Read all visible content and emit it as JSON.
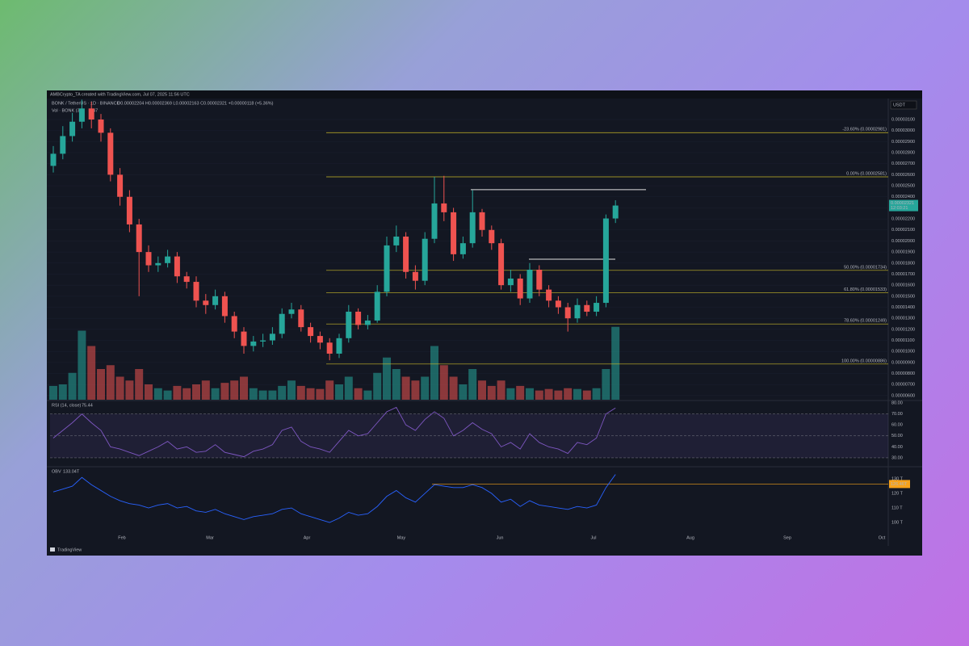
{
  "header": {
    "credit": "AMBCrypto_TA created with TradingView.com, Jul 07, 2025 11:56 UTC",
    "symbol": "BONK / TetherUS · 1D · BINANCE",
    "ohlc": "O0.00002204 H0.00002369 L0.00002163 C0.00002321 +0.00000118 (+5.36%)",
    "volume_label": "Vol · BONK (3B)",
    "volume_value": "747",
    "currency": "USDT",
    "countdown": "12:03:21",
    "brand": "TradingView"
  },
  "chart_data": [
    {
      "type": "candlestick",
      "up_color": "#26a69a",
      "down_color": "#ef5350",
      "open": [
        2.68e-05,
        2.79e-05,
        2.95e-05,
        3.08e-05,
        3.2e-05,
        3.1e-05,
        2.98e-05,
        2.6e-05,
        2.4e-05,
        2.15e-05,
        1.9e-05,
        1.78e-05,
        1.8e-05,
        1.86e-05,
        1.68e-05,
        1.63e-05,
        1.46e-05,
        1.42e-05,
        1.5e-05,
        1.32e-05,
        1.18e-05,
        1.05e-05,
        1.09e-05,
        1.1e-05,
        1.16e-05,
        1.34e-05,
        1.38e-05,
        1.22e-05,
        1.14e-05,
        1.08e-05,
        9.8e-06,
        1.12e-05,
        1.36e-05,
        1.24e-05,
        1.28e-05,
        1.54e-05,
        1.96e-05,
        2.04e-05,
        1.72e-05,
        1.64e-05,
        2.02e-05,
        2.34e-05,
        2.26e-05,
        1.88e-05,
        1.98e-05,
        2.26e-05,
        2.1e-05,
        1.98e-05,
        1.6e-05,
        1.66e-05,
        1.48e-05,
        1.74e-05,
        1.56e-05,
        1.46e-05,
        1.4e-05,
        1.3e-05,
        1.42e-05,
        1.36e-05,
        1.44e-05,
        2.204e-05
      ],
      "high": [
        2.86e-05,
        3.04e-05,
        3.16e-05,
        3.28e-05,
        3.26e-05,
        3.15e-05,
        3.02e-05,
        2.66e-05,
        2.46e-05,
        2.2e-05,
        1.96e-05,
        1.86e-05,
        1.92e-05,
        1.9e-05,
        1.72e-05,
        1.68e-05,
        1.52e-05,
        1.56e-05,
        1.54e-05,
        1.36e-05,
        1.22e-05,
        1.14e-05,
        1.16e-05,
        1.22e-05,
        1.39e-05,
        1.44e-05,
        1.42e-05,
        1.26e-05,
        1.18e-05,
        1.12e-05,
        1.16e-05,
        1.42e-05,
        1.39e-05,
        1.33e-05,
        1.6e-05,
        2.04e-05,
        2.14e-05,
        2.08e-05,
        1.78e-05,
        2.08e-05,
        2.58e-05,
        2.59e-05,
        2.3e-05,
        2.04e-05,
        2.46e-05,
        2.29e-05,
        2.14e-05,
        2.02e-05,
        1.74e-05,
        1.7e-05,
        1.8e-05,
        1.78e-05,
        1.6e-05,
        1.5e-05,
        1.44e-05,
        1.48e-05,
        1.46e-05,
        1.5e-05,
        2.24e-05,
        2.369e-05
      ],
      "low": [
        2.62e-05,
        2.74e-05,
        2.9e-05,
        3.02e-05,
        3.02e-05,
        2.9e-05,
        2.54e-05,
        2.32e-05,
        2.08e-05,
        1.5e-05,
        1.72e-05,
        1.72e-05,
        1.76e-05,
        1.62e-05,
        1.57e-05,
        1.4e-05,
        1.34e-05,
        1.38e-05,
        1.26e-05,
        1.12e-05,
        9.8e-06,
        1e-05,
        1.04e-05,
        1.06e-05,
        1.12e-05,
        1.3e-05,
        1.18e-05,
        1.08e-05,
        1.02e-05,
        9.2e-06,
        9.4e-06,
        1.08e-05,
        1.2e-05,
        1.2e-05,
        1.26e-05,
        1.5e-05,
        1.9e-05,
        1.66e-05,
        1.56e-05,
        1.6e-05,
        1.98e-05,
        2.18e-05,
        1.82e-05,
        1.84e-05,
        1.94e-05,
        2.04e-05,
        1.92e-05,
        1.56e-05,
        1.54e-05,
        1.42e-05,
        1.44e-05,
        1.5e-05,
        1.4e-05,
        1.34e-05,
        1.18e-05,
        1.26e-05,
        1.32e-05,
        1.32e-05,
        1.4e-05,
        2.163e-05
      ],
      "close": [
        2.79e-05,
        2.95e-05,
        3.08e-05,
        3.2e-05,
        3.1e-05,
        2.98e-05,
        2.6e-05,
        2.4e-05,
        2.15e-05,
        1.9e-05,
        1.78e-05,
        1.8e-05,
        1.86e-05,
        1.68e-05,
        1.63e-05,
        1.46e-05,
        1.42e-05,
        1.5e-05,
        1.32e-05,
        1.18e-05,
        1.05e-05,
        1.09e-05,
        1.1e-05,
        1.16e-05,
        1.34e-05,
        1.38e-05,
        1.22e-05,
        1.14e-05,
        1.08e-05,
        9.8e-06,
        1.12e-05,
        1.36e-05,
        1.24e-05,
        1.28e-05,
        1.54e-05,
        1.96e-05,
        2.04e-05,
        1.72e-05,
        1.64e-05,
        2.02e-05,
        2.34e-05,
        2.26e-05,
        1.88e-05,
        1.98e-05,
        2.26e-05,
        2.1e-05,
        1.98e-05,
        1.6e-05,
        1.66e-05,
        1.48e-05,
        1.74e-05,
        1.56e-05,
        1.46e-05,
        1.4e-05,
        1.3e-05,
        1.42e-05,
        1.36e-05,
        1.44e-05,
        2.204e-05,
        2.321e-05
      ],
      "volume": [
        18,
        20,
        35,
        90,
        70,
        40,
        45,
        30,
        25,
        40,
        20,
        15,
        12,
        18,
        15,
        20,
        25,
        15,
        22,
        25,
        30,
        15,
        12,
        12,
        18,
        25,
        18,
        15,
        14,
        25,
        20,
        30,
        15,
        12,
        35,
        55,
        40,
        30,
        25,
        30,
        70,
        45,
        30,
        20,
        40,
        25,
        18,
        25,
        15,
        18,
        15,
        12,
        14,
        12,
        15,
        14,
        12,
        15,
        40,
        95
      ],
      "volume_lim": [
        0,
        100
      ],
      "ylim": [
        5.63e-06,
        3.29e-05
      ],
      "yticks": [
        {
          "value": 3.1e-05,
          "label": "0.00003100"
        },
        {
          "value": 3e-05,
          "label": "0.00003000"
        },
        {
          "value": 2.9e-05,
          "label": "0.00002900"
        },
        {
          "value": 2.8e-05,
          "label": "0.00002800"
        },
        {
          "value": 2.7e-05,
          "label": "0.00002700"
        },
        {
          "value": 2.6e-05,
          "label": "0.00002600"
        },
        {
          "value": 2.5e-05,
          "label": "0.00002500"
        },
        {
          "value": 2.4e-05,
          "label": "0.00002400"
        },
        {
          "value": 2.3e-05,
          "label": "0.00002300"
        },
        {
          "value": 2.2e-05,
          "label": "0.00002200"
        },
        {
          "value": 2.1e-05,
          "label": "0.00002100"
        },
        {
          "value": 2e-05,
          "label": "0.00002000"
        },
        {
          "value": 1.9e-05,
          "label": "0.00001900"
        },
        {
          "value": 1.8e-05,
          "label": "0.00001800"
        },
        {
          "value": 1.7e-05,
          "label": "0.00001700"
        },
        {
          "value": 1.6e-05,
          "label": "0.00001600"
        },
        {
          "value": 1.5e-05,
          "label": "0.00001500"
        },
        {
          "value": 1.4e-05,
          "label": "0.00001400"
        },
        {
          "value": 1.3e-05,
          "label": "0.00001300"
        },
        {
          "value": 1.2e-05,
          "label": "0.00001200"
        },
        {
          "value": 1.1e-05,
          "label": "0.00001100"
        },
        {
          "value": 1e-05,
          "label": "0.00001000"
        },
        {
          "value": 9e-06,
          "label": "0.00000900"
        },
        {
          "value": 8e-06,
          "label": "0.00000800"
        },
        {
          "value": 7e-06,
          "label": "0.00000700"
        },
        {
          "value": 6e-06,
          "label": "0.00000600"
        }
      ],
      "fib_color": "#c9b92a",
      "fib_levels": [
        {
          "value": 2.981e-05,
          "label": "-23.60% (0.00002981)"
        },
        {
          "value": 2.581e-05,
          "label": "0.00% (0.00002581)"
        },
        {
          "value": 1.734e-05,
          "label": "50.00% (0.00001734)"
        },
        {
          "value": 1.533e-05,
          "label": "61.80% (0.00001533)"
        },
        {
          "value": 1.249e-05,
          "label": "78.60% (0.00001249)"
        },
        {
          "value": 8.86e-06,
          "label": "100.00% (0.00000886)"
        }
      ],
      "lines": [
        2.465e-05,
        1.835e-05
      ],
      "x_labels": [
        "Feb",
        "Mar",
        "Apr",
        "May",
        "Jun",
        "Jul",
        "Aug",
        "Sep",
        "Oct"
      ]
    },
    {
      "type": "line",
      "name": "RSI (14, close)",
      "value_label": "75.44",
      "color": "#7e57c2",
      "values": [
        48,
        55,
        62,
        70,
        62,
        55,
        40,
        38,
        35,
        32,
        36,
        40,
        45,
        38,
        40,
        35,
        36,
        42,
        35,
        33,
        31,
        36,
        38,
        42,
        55,
        58,
        45,
        40,
        38,
        35,
        45,
        55,
        50,
        52,
        62,
        72,
        76,
        60,
        55,
        65,
        72,
        66,
        50,
        55,
        62,
        56,
        52,
        40,
        44,
        38,
        52,
        44,
        40,
        38,
        34,
        44,
        42,
        48,
        70,
        75.44
      ],
      "ylim": [
        22.6,
        81.5
      ],
      "yticks": [
        {
          "value": 80,
          "label": "80.00"
        },
        {
          "value": 70,
          "label": "70.00"
        },
        {
          "value": 60,
          "label": "60.00"
        },
        {
          "value": 50,
          "label": "50.00"
        },
        {
          "value": 40,
          "label": "40.00"
        },
        {
          "value": 30,
          "label": "30.00"
        }
      ],
      "band": [
        30,
        70
      ],
      "levels": [
        70,
        50,
        30
      ]
    },
    {
      "type": "line",
      "name": "OBV",
      "value_label": "133.04T",
      "color": "#2962ff",
      "values": [
        121,
        123,
        125,
        131,
        126,
        122,
        118,
        115,
        113,
        112,
        110,
        112,
        113,
        110,
        111,
        108,
        107,
        109,
        106,
        104,
        102,
        104,
        105,
        106,
        109,
        110,
        106,
        104,
        102,
        100,
        103,
        107,
        105,
        106,
        111,
        118,
        122,
        117,
        114,
        120,
        126,
        125,
        124,
        124,
        126,
        124,
        120,
        114,
        116,
        111,
        115,
        112,
        111,
        110,
        109,
        111,
        110,
        112,
        124,
        133.04
      ],
      "ylim": [
        92.8,
        137.8
      ],
      "yticks": [
        {
          "value": 130,
          "label": "130 T"
        },
        {
          "value": 120,
          "label": "120 T"
        },
        {
          "value": 110,
          "label": "110 T"
        },
        {
          "value": 100,
          "label": "100 T"
        }
      ],
      "marker": {
        "value": 126.46,
        "label": "126.46T"
      },
      "marker_color": "#f7a21b"
    }
  ]
}
